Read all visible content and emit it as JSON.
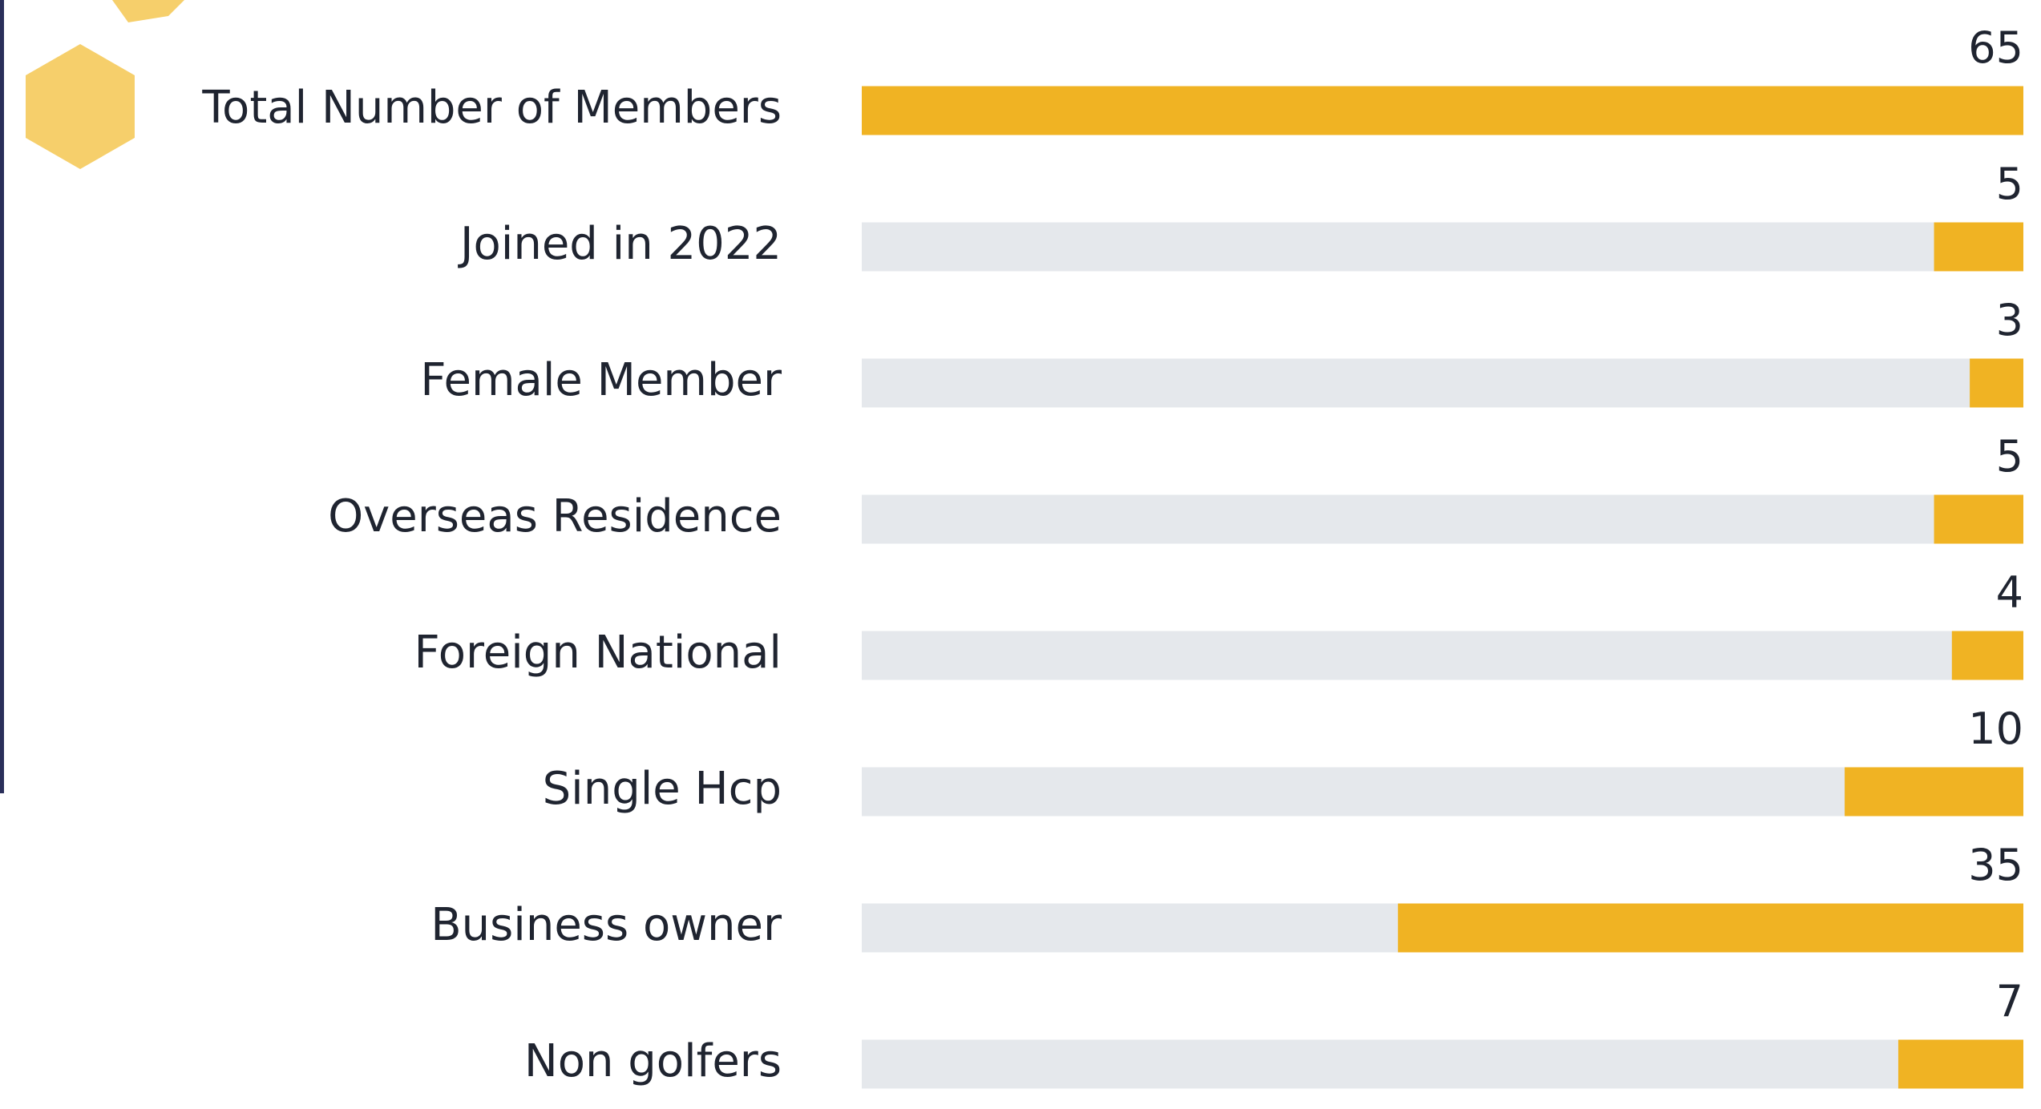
{
  "chart_data": {
    "type": "bar",
    "orientation": "horizontal",
    "categories": [
      "Total Number of Members",
      "Joined in 2022",
      "Female Member",
      "Overseas Residence",
      "Foreign National",
      "Single Hcp",
      "Business owner",
      "Non golfers"
    ],
    "values": [
      65,
      5,
      3,
      5,
      4,
      10,
      35,
      7
    ],
    "color": "#f0b323",
    "track_color": "#e5e8ec"
  }
}
